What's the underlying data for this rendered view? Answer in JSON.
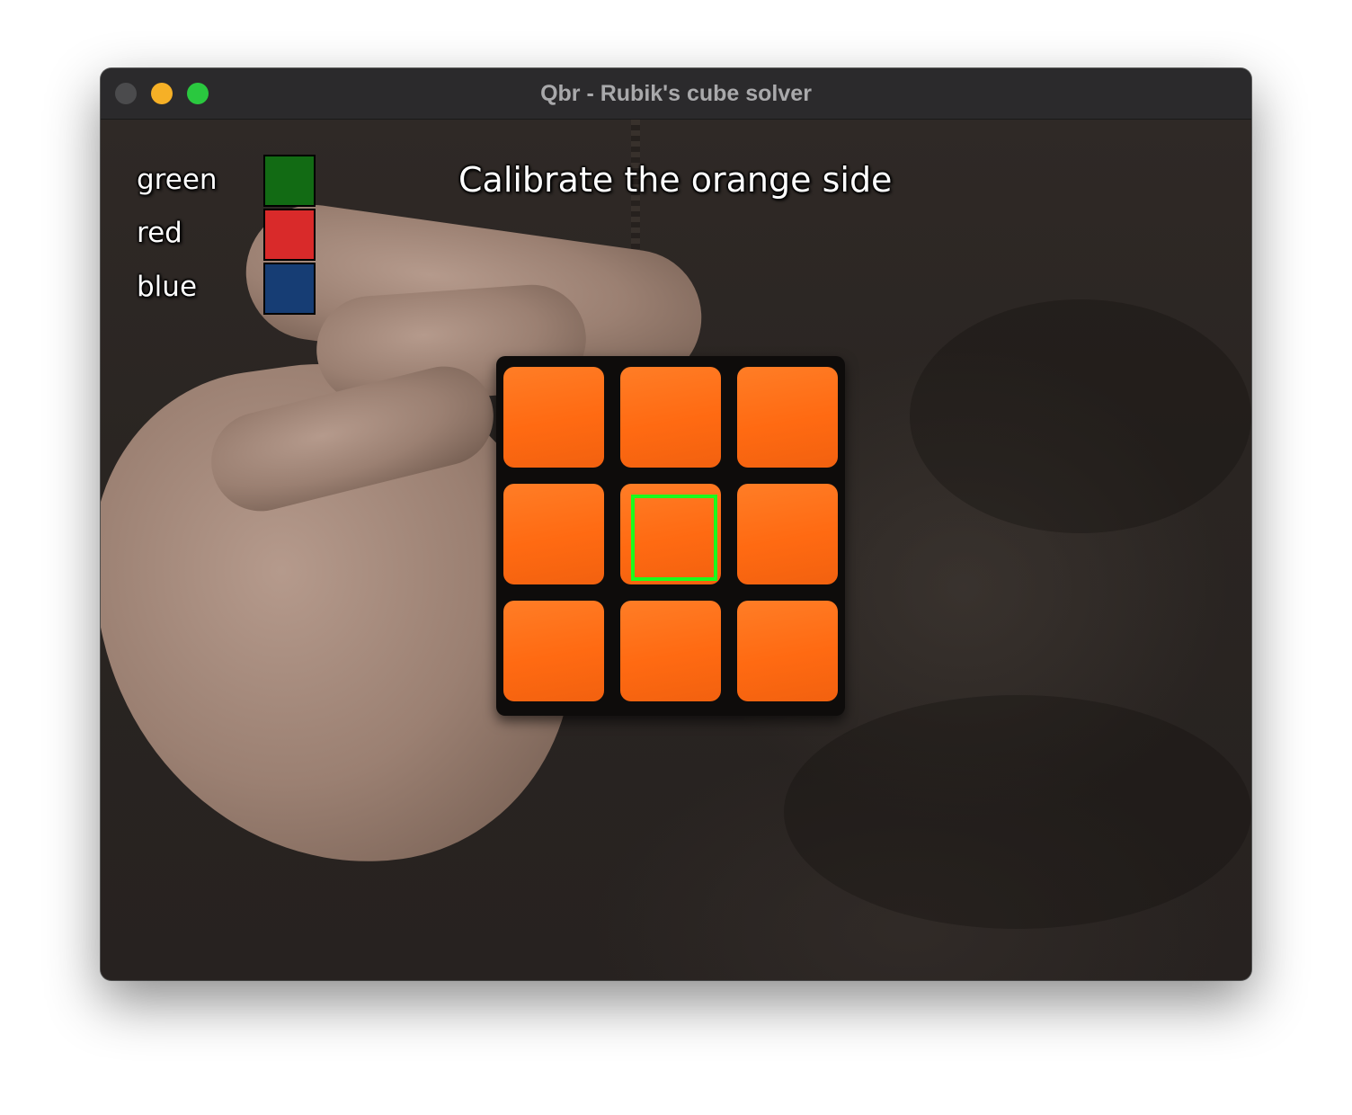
{
  "window": {
    "title": "Qbr - Rubik's cube solver",
    "traffic_lights": {
      "close_color": "#4b4b4d",
      "minimize_color": "#f6b026",
      "maximize_color": "#2ac83f"
    }
  },
  "overlay": {
    "instruction": "Calibrate the orange side",
    "legend": [
      {
        "label": "green",
        "color": "#126b14"
      },
      {
        "label": "red",
        "color": "#d92a2a"
      },
      {
        "label": "blue",
        "color": "#163d74"
      }
    ],
    "target_box_color": "#1bff1b"
  },
  "cube_face": {
    "color_name": "orange",
    "sticker_color": "#ff6a12",
    "grid": [
      [
        "orange",
        "orange",
        "orange"
      ],
      [
        "orange",
        "orange",
        "orange"
      ],
      [
        "orange",
        "orange",
        "orange"
      ]
    ]
  }
}
